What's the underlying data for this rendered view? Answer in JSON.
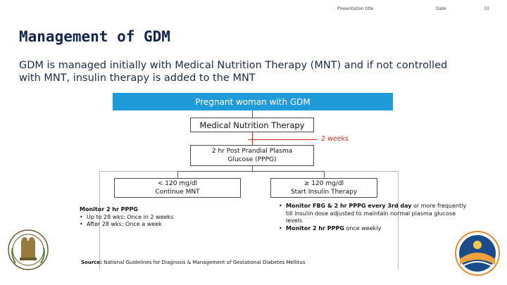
{
  "header": {
    "presentation_title": "Presentation title",
    "date": "Date",
    "page_number": "33"
  },
  "title": "Management of GDM",
  "intro": "GDM is managed initially with Medical Nutrition Therapy (MNT) and if not controlled with MNT, insulin therapy is added to the MNT",
  "flow": {
    "root": "Pregnant woman with GDM",
    "mnt": "Medical Nutrition Therapy",
    "interval": "2 weeks",
    "pppg_line1": "2 hr Post Prandial Plasma",
    "pppg_line2": "Glucose (PPPG)",
    "left_line1": "< 120 mg/dl",
    "left_line2": "Continue MNT",
    "right_line1": "≥ 120 mg/dl",
    "right_line2": "Start Insulin Therapy"
  },
  "left_notes": {
    "heading": "Monitor 2 hr PPPG",
    "items": [
      "Up to 28 wks: Once in 2 weeks",
      "After 28 wks: Once a week"
    ]
  },
  "right_notes": {
    "item1_bold": "Monitor FBG & 2 hr PPPG every 3rd day",
    "item1_rest": " or more frequently till insulin dose adjusted to maintain normal plasma glucose levels",
    "item2_bold": "Monitor 2 hr PPPG",
    "item2_rest": " once weekly"
  },
  "source": {
    "label": "Source:",
    "text": " National Guidelines for Diagnosis & Management of Gestational Diabetes Mellitus"
  },
  "colors": {
    "accent_blue": "#1e9bd8",
    "title_navy": "#14264d",
    "interval_red": "#d22a1e"
  },
  "icons": [
    "state-emblem-logo",
    "circular-org-logo"
  ]
}
